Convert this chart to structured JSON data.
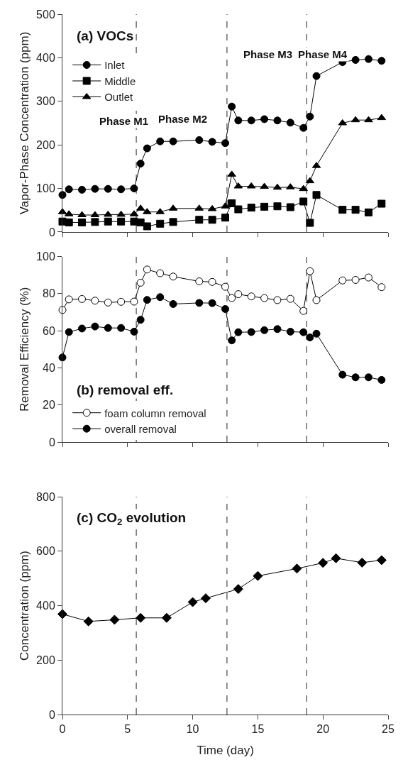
{
  "chart_data": [
    {
      "type": "line",
      "title": "(a) VOCs",
      "ylabel": "Vapor-Phase Concentration (ppm)",
      "xlim": [
        0,
        25
      ],
      "xticks": [
        0,
        5,
        10,
        15,
        20,
        25
      ],
      "ylim": [
        0,
        500
      ],
      "yticks": [
        0,
        100,
        200,
        300,
        400,
        500
      ],
      "tick_labels": "y",
      "grid": false,
      "legend": "top left",
      "line_style": "solid",
      "x": [
        0,
        0.5,
        1.5,
        2.5,
        3.5,
        4.5,
        5.5,
        6.0,
        6.5,
        7.5,
        8.5,
        10.5,
        11.5,
        12.5,
        13.0,
        13.5,
        14.5,
        15.5,
        16.5,
        17.5,
        18.5,
        19.0,
        19.5,
        21.5,
        22.5,
        23.5,
        24.5
      ],
      "series": [
        {
          "name": "Inlet",
          "color": "#000000",
          "marker": "circle",
          "values": [
            85,
            98,
            97,
            99,
            99,
            98,
            100,
            157,
            192,
            208,
            208,
            211,
            207,
            204,
            288,
            256,
            256,
            259,
            256,
            251,
            239,
            265,
            358,
            390,
            395,
            397,
            393
          ]
        },
        {
          "name": "Middle",
          "color": "#000000",
          "marker": "square",
          "values": [
            24,
            22,
            22,
            23,
            24,
            24,
            24,
            22,
            13,
            19,
            23,
            28,
            28,
            33,
            66,
            52,
            56,
            58,
            59,
            57,
            70,
            21,
            85,
            51,
            51,
            45,
            65
          ]
        },
        {
          "name": "Outlet",
          "color": "#000000",
          "marker": "triangle",
          "values": [
            46,
            41,
            39,
            39,
            40,
            40,
            41,
            54,
            46,
            46,
            54,
            54,
            53,
            59,
            132,
            105,
            105,
            104,
            102,
            103,
            99,
            117,
            152,
            250,
            257,
            257,
            262
          ]
        }
      ],
      "ref_lines": [
        {
          "axis": "x",
          "value": 5.67,
          "color": "#555555",
          "line_style": "dashed"
        },
        {
          "axis": "x",
          "value": 12.63,
          "color": "#555555",
          "line_style": "dashed"
        },
        {
          "axis": "x",
          "value": 18.75,
          "color": "#555555",
          "line_style": "dashed"
        }
      ],
      "annotations": [
        "Phase M1",
        "Phase M2",
        "Phase M3",
        "Phase M4"
      ]
    },
    {
      "type": "line",
      "title": "(b) removal eff.",
      "ylabel": "Removal Efficiency (%)",
      "xlim": [
        0,
        25
      ],
      "xticks": [
        0,
        5,
        10,
        15,
        20,
        25
      ],
      "ylim": [
        0,
        100
      ],
      "yticks": [
        0,
        20,
        40,
        60,
        80,
        100
      ],
      "tick_labels": "y",
      "grid": false,
      "legend": "bottom left",
      "line_style": "solid",
      "x": [
        0,
        0.5,
        1.5,
        2.5,
        3.5,
        4.5,
        5.5,
        6.0,
        6.5,
        7.5,
        8.5,
        10.5,
        11.5,
        12.5,
        13.0,
        13.5,
        14.5,
        15.5,
        16.5,
        17.5,
        18.5,
        19.0,
        19.5,
        21.5,
        22.5,
        23.5,
        24.5
      ],
      "series": [
        {
          "name": "foam column removal",
          "color": "#ffffff",
          "marker": "circle",
          "values": [
            71.2,
            76.9,
            77.1,
            76.2,
            75.2,
            75.6,
            75.7,
            85.9,
            93.0,
            91.0,
            89.2,
            86.6,
            86.3,
            83.7,
            77.6,
            79.7,
            78.5,
            77.6,
            76.5,
            77.2,
            70.7,
            92.1,
            76.5,
            87.1,
            87.4,
            88.7,
            83.5
          ]
        },
        {
          "name": "overall removal",
          "color": "#000000",
          "marker": "circle",
          "values": [
            45.6,
            59.3,
            61.2,
            62.3,
            61.5,
            61.5,
            59.5,
            65.9,
            76.6,
            78.1,
            74.4,
            75.0,
            74.9,
            71.7,
            54.8,
            59.2,
            59.3,
            60.3,
            60.9,
            59.5,
            59.2,
            56.4,
            58.4,
            36.3,
            34.9,
            34.9,
            33.5
          ]
        }
      ],
      "ref_lines": [
        {
          "axis": "x",
          "value": 5.67,
          "color": "#555555",
          "line_style": "dashed"
        },
        {
          "axis": "x",
          "value": 12.63,
          "color": "#555555",
          "line_style": "dashed"
        },
        {
          "axis": "x",
          "value": 18.75,
          "color": "#555555",
          "line_style": "dashed"
        }
      ]
    },
    {
      "type": "line",
      "title": "(c) CO$_{2}$ evolution",
      "ylabel": "Concentration (ppm)",
      "xlabel": "Time (day)",
      "xlim": [
        0,
        25
      ],
      "xticks": [
        0,
        5,
        10,
        15,
        20,
        25
      ],
      "ylim": [
        0,
        800
      ],
      "yticks": [
        0,
        200,
        400,
        600,
        800
      ],
      "grid": false,
      "legend": false,
      "line_style": "solid",
      "marker": "diamond",
      "x": [
        0,
        2,
        4,
        6,
        8,
        10,
        11,
        13.5,
        15,
        18,
        20,
        21,
        23,
        24.5
      ],
      "series": [
        {
          "color": "#000000",
          "values": [
            369,
            342,
            348,
            355,
            355,
            413,
            427,
            461,
            509,
            536,
            557,
            574,
            558,
            567
          ]
        }
      ],
      "ref_lines": [
        {
          "axis": "x",
          "value": 5.67,
          "color": "#555555",
          "line_style": "dashed"
        },
        {
          "axis": "x",
          "value": 12.63,
          "color": "#555555",
          "line_style": "dashed"
        },
        {
          "axis": "x",
          "value": 18.75,
          "color": "#555555",
          "line_style": "dashed"
        }
      ]
    }
  ]
}
